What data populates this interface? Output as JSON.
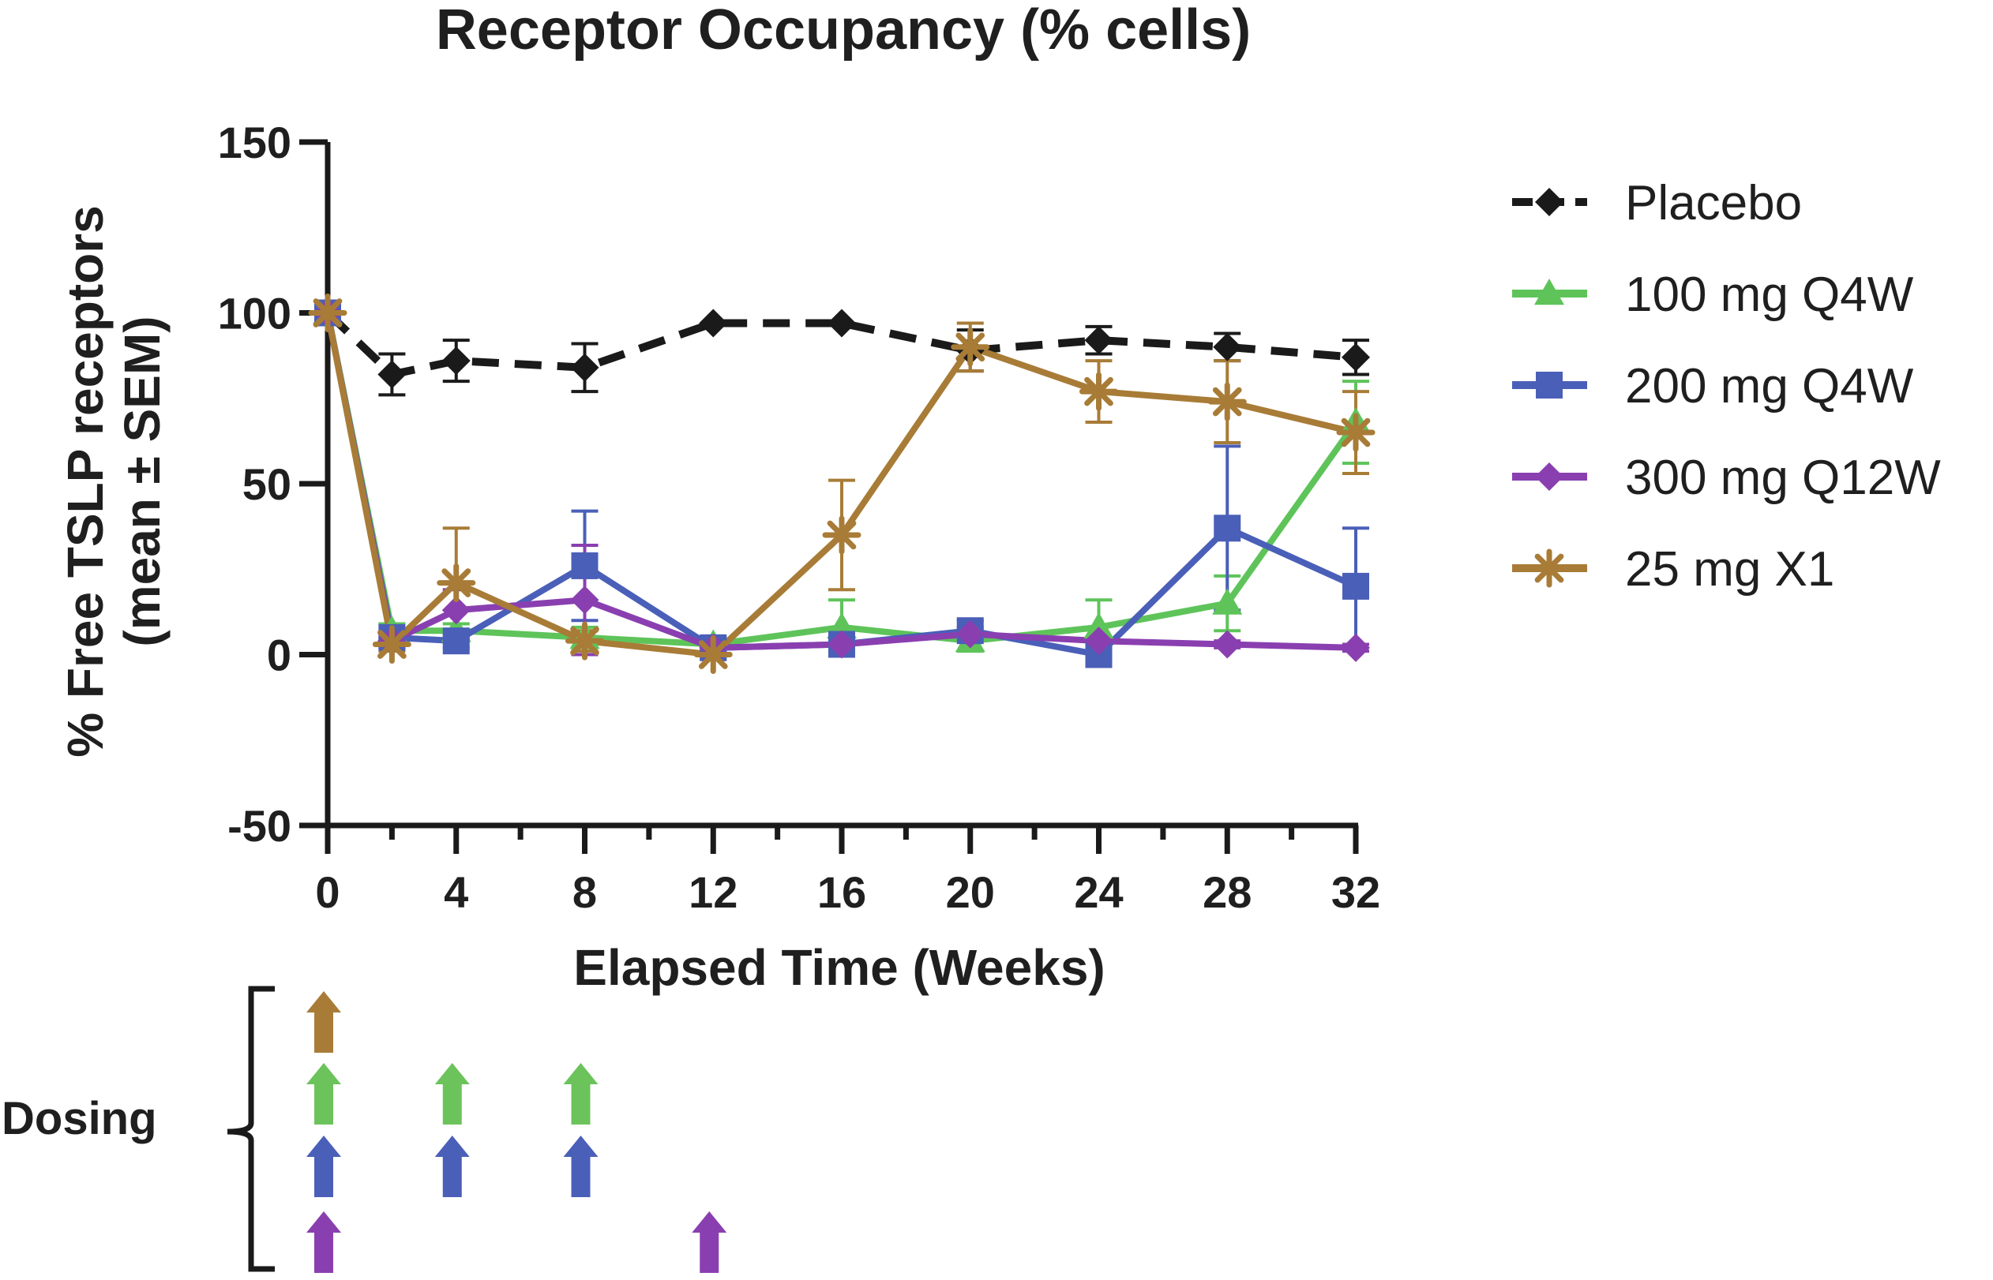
{
  "chart_data": {
    "type": "line",
    "title": "Receptor Occupancy (% cells)",
    "xlabel": "Elapsed Time (Weeks)",
    "ylabel_line1": "% Free TSLP receptors",
    "ylabel_line2": "(mean ± SEM)",
    "xlim": [
      0,
      32
    ],
    "ylim": [
      -50,
      150
    ],
    "x_ticks": [
      0,
      4,
      8,
      12,
      16,
      20,
      24,
      28,
      32
    ],
    "x_tick_labels": [
      "0",
      "4",
      "8",
      "12",
      "16",
      "20",
      "24",
      "28",
      "32"
    ],
    "y_ticks": [
      -50,
      0,
      50,
      100,
      150
    ],
    "y_tick_labels": [
      "-50",
      "0",
      "50",
      "100",
      "150"
    ],
    "x_minor_step": 2,
    "series": [
      {
        "name": "Placebo",
        "color": "#1a1a1a",
        "marker": "diamond",
        "dashed": true,
        "x": [
          0,
          2,
          4,
          8,
          12,
          16,
          20,
          24,
          28,
          32
        ],
        "y": [
          100,
          82,
          86,
          84,
          97,
          97,
          89,
          92,
          90,
          87
        ],
        "err": [
          0,
          6,
          6,
          7,
          0,
          0,
          6,
          4,
          4,
          5
        ]
      },
      {
        "name": "100 mg Q4W",
        "color": "#5ec45a",
        "marker": "triangle",
        "dashed": false,
        "x": [
          0,
          2,
          4,
          8,
          12,
          16,
          20,
          24,
          28,
          32
        ],
        "y": [
          100,
          7,
          7,
          5,
          3,
          8,
          4,
          8,
          15,
          68
        ],
        "err": [
          0,
          2,
          2,
          3,
          2,
          8,
          3,
          8,
          8,
          12
        ]
      },
      {
        "name": "200 mg Q4W",
        "color": "#4a5fb8",
        "marker": "square",
        "dashed": false,
        "x": [
          0,
          2,
          4,
          8,
          12,
          16,
          20,
          24,
          28,
          32
        ],
        "y": [
          100,
          5,
          4,
          26,
          2,
          3,
          7,
          0,
          37,
          20
        ],
        "err": [
          0,
          2,
          2,
          16,
          2,
          2,
          3,
          2,
          24,
          17
        ]
      },
      {
        "name": "300 mg Q12W",
        "color": "#8a3fb0",
        "marker": "diamond",
        "dashed": false,
        "x": [
          0,
          2,
          4,
          8,
          12,
          16,
          20,
          24,
          28,
          32
        ],
        "y": [
          100,
          4,
          13,
          16,
          2,
          3,
          6,
          4,
          3,
          2
        ],
        "err": [
          0,
          2,
          6,
          16,
          1,
          1,
          2,
          1,
          1,
          1
        ]
      },
      {
        "name": "25 mg X1",
        "color": "#a87c37",
        "marker": "asterisk",
        "dashed": false,
        "x": [
          0,
          2,
          4,
          8,
          12,
          16,
          20,
          24,
          28,
          32
        ],
        "y": [
          100,
          3,
          21,
          4,
          0,
          35,
          90,
          77,
          74,
          65
        ],
        "err": [
          0,
          2,
          16,
          3,
          1,
          16,
          7,
          9,
          12,
          12
        ]
      }
    ],
    "dosing": {
      "label": "Dosing",
      "rows": [
        {
          "series": "25 mg X1",
          "color": "#a87c37",
          "weeks": [
            0
          ]
        },
        {
          "series": "100 mg Q4W",
          "color": "#6cc35b",
          "weeks": [
            0,
            4,
            8
          ]
        },
        {
          "series": "200 mg Q4W",
          "color": "#4a5fb8",
          "weeks": [
            0,
            4,
            8
          ]
        },
        {
          "series": "300 mg Q12W",
          "color": "#8a3fb0",
          "weeks": [
            0,
            12
          ]
        }
      ]
    }
  }
}
